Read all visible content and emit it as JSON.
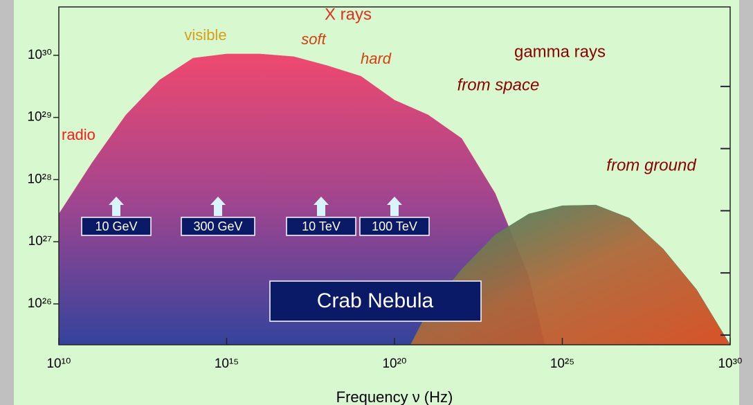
{
  "chart_data": {
    "type": "area",
    "xlabel": "Frequency  ν  (Hz)",
    "xlog": true,
    "ylog": true,
    "xlim": [
      10000000000.0,
      1e+30
    ],
    "ylim": [
      2.2e+25,
      6e+30
    ],
    "xticks": [
      {
        "value": 10000000000.0,
        "label": "10¹⁰"
      },
      {
        "value": 1000000000000000.0,
        "label": "10¹⁵"
      },
      {
        "value": 1e+20,
        "label": "10²⁰"
      },
      {
        "value": 1e+25,
        "label": "10²⁵"
      },
      {
        "value": 1e+30,
        "label": "10³⁰"
      }
    ],
    "yticks": [
      {
        "value": 1e+26,
        "label": "10²⁶"
      },
      {
        "value": 1e+27,
        "label": "10²⁷"
      },
      {
        "value": 1e+28,
        "label": "10²⁸"
      },
      {
        "value": 1e+29,
        "label": "10²⁹"
      },
      {
        "value": 1e+30,
        "label": "10³⁰"
      }
    ],
    "series": [
      {
        "color": "#e8406a",
        "x": [
          10000000000.0,
          100000000000.0,
          1000000000000.0,
          10000000000000.0,
          100000000000000.0,
          1000000000000000.0,
          1e+16,
          1e+17,
          1e+18,
          1e+19,
          1e+20,
          1e+21,
          1e+22,
          1e+23,
          1e+24,
          3e+24
        ],
        "values": [
          2.8e+27,
          1.9e+28,
          1.1e+29,
          4e+29,
          9e+29,
          1.05e+30,
          1.05e+30,
          9.5e+29,
          6.8e+29,
          4.6e+29,
          1.9e+29,
          1.1e+29,
          4.6e+28,
          6e+27,
          2.8e+26,
          2.2e+25
        ]
      },
      {
        "color": "#3a8a5a",
        "x": [
          3e+20,
          1e+21,
          1e+22,
          1e+23,
          1e+24,
          1e+25,
          1e+26,
          1e+27,
          1e+28,
          1e+29,
          1e+30
        ],
        "values": [
          2.2e+25,
          7.8e+25,
          3.6e+26,
          1.3e+27,
          2.8e+27,
          3.8e+27,
          3.9e+27,
          2.4e+27,
          7.7e+26,
          1.7e+26,
          2.2e+25
        ]
      }
    ],
    "annotations": [
      {
        "text": "X rays",
        "color": "#e0301e"
      },
      {
        "text": "visible",
        "color": "#d4a017"
      },
      {
        "text": "soft",
        "color": "#d4400e"
      },
      {
        "text": "hard",
        "color": "#d4400e"
      },
      {
        "text": "gamma rays",
        "color": "#8b0000"
      },
      {
        "text": "from space",
        "color": "#8b0000"
      },
      {
        "text": "from ground",
        "color": "#8b0000"
      },
      {
        "text": "radio",
        "color": "#ff1a1a"
      }
    ],
    "energies": [
      "10 GeV",
      "300 GeV",
      "10 TeV",
      "100 TeV"
    ],
    "label": "Crab Nebula"
  }
}
